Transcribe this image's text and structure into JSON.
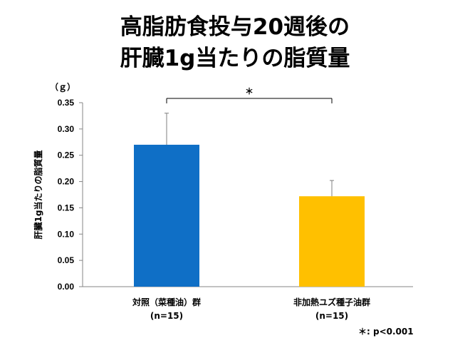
{
  "title_line1": "高脂肪食投与20週後の",
  "title_line2": "肝臓1g当たりの脂質量",
  "significance_mark": "＊",
  "footnote": "＊: p<0.001",
  "colors": {
    "bar1": "#0f6fc6",
    "bar2": "#ffc000",
    "axis": "#868686",
    "error": "#7f7f7f"
  },
  "chart_data": {
    "type": "bar",
    "unit_label": "（ｇ）",
    "ylabel": "肝臓1g当たりの脂質量",
    "ylim": [
      0,
      0.35
    ],
    "yticks": [
      "0.00",
      "0.05",
      "0.10",
      "0.15",
      "0.20",
      "0.25",
      "0.30",
      "0.35"
    ],
    "categories": [
      "対照（菜種油）群",
      "非加熱ユズ種子油群"
    ],
    "sample_sizes": [
      "(n=15)",
      "(n=15)"
    ],
    "values": [
      0.27,
      0.172
    ],
    "errors": [
      0.06,
      0.03
    ],
    "grid": false,
    "legend": "none"
  }
}
